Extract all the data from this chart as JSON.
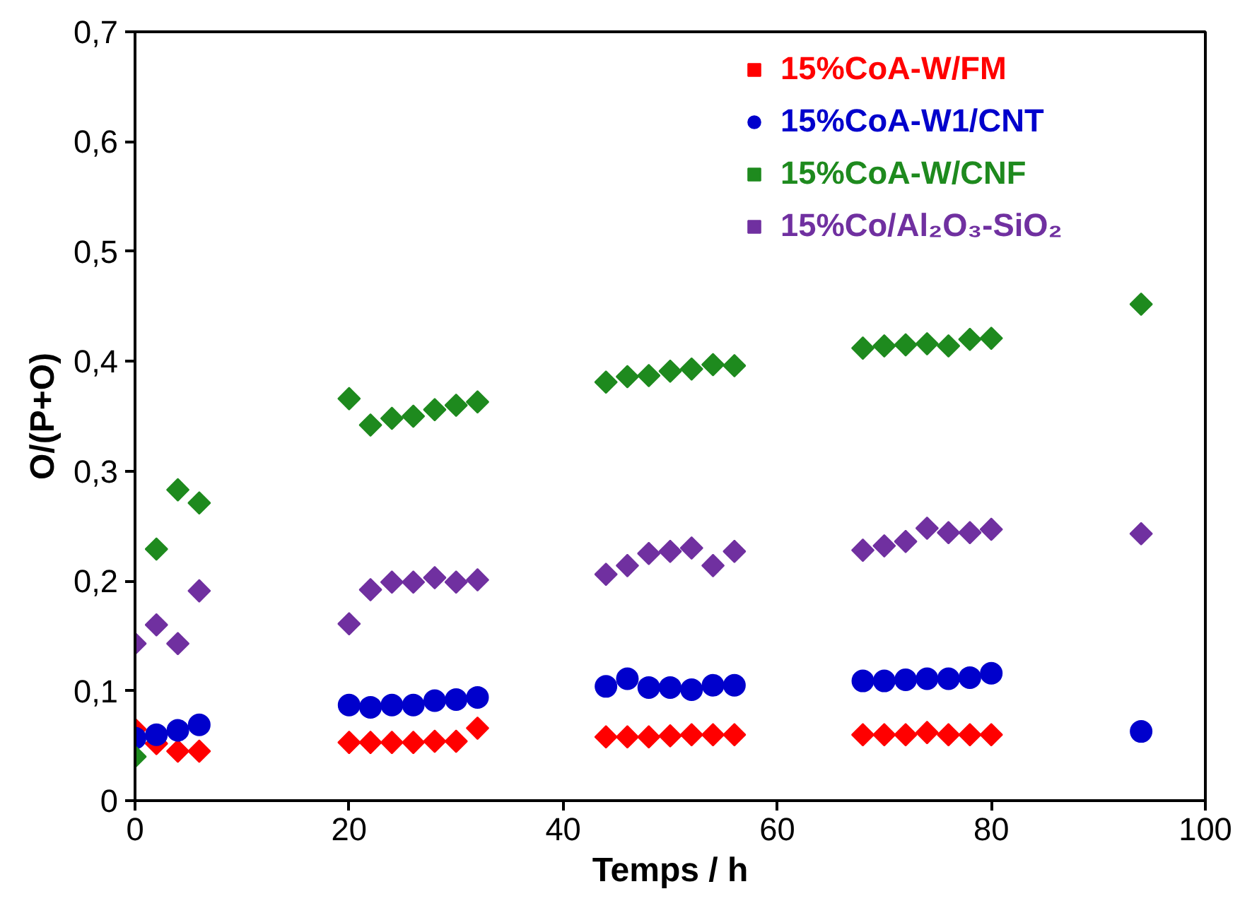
{
  "chart_data": {
    "type": "scatter",
    "xlabel": "Temps / h",
    "ylabel": "O/(P+O)",
    "xlim": [
      0,
      100
    ],
    "xticks": [
      0,
      20,
      40,
      60,
      80,
      100
    ],
    "ylim": [
      0,
      0.7
    ],
    "yticks": [
      {
        "value": 0,
        "label": "0"
      },
      {
        "value": 0.1,
        "label": "0,1"
      },
      {
        "value": 0.2,
        "label": "0,2"
      },
      {
        "value": 0.3,
        "label": "0,3"
      },
      {
        "value": 0.4,
        "label": "0,4"
      },
      {
        "value": 0.5,
        "label": "0,5"
      },
      {
        "value": 0.6,
        "label": "0,6"
      },
      {
        "value": 0.7,
        "label": "0,7"
      }
    ],
    "grid": false,
    "legend": "top right",
    "series": [
      {
        "name": "15%CoA-W/FM",
        "color": "#ff0000",
        "marker": "diamond",
        "x": [
          0,
          2,
          4,
          6,
          20,
          22,
          24,
          26,
          28,
          30,
          32,
          44,
          46,
          48,
          50,
          52,
          54,
          56,
          68,
          70,
          72,
          74,
          76,
          78,
          80
        ],
        "values": [
          0.065,
          0.052,
          0.045,
          0.045,
          0.053,
          0.053,
          0.053,
          0.053,
          0.054,
          0.054,
          0.066,
          0.058,
          0.058,
          0.058,
          0.059,
          0.06,
          0.06,
          0.06,
          0.06,
          0.06,
          0.06,
          0.062,
          0.06,
          0.06,
          0.06
        ]
      },
      {
        "name": "15%CoA-W1/CNT",
        "color": "#0000cc",
        "marker": "circle",
        "x": [
          0,
          2,
          4,
          6,
          20,
          22,
          24,
          26,
          28,
          30,
          32,
          44,
          46,
          48,
          50,
          52,
          54,
          56,
          68,
          70,
          72,
          74,
          76,
          78,
          80,
          94
        ],
        "values": [
          0.057,
          0.06,
          0.064,
          0.069,
          0.087,
          0.085,
          0.087,
          0.087,
          0.091,
          0.092,
          0.094,
          0.104,
          0.111,
          0.103,
          0.103,
          0.101,
          0.105,
          0.105,
          0.109,
          0.109,
          0.11,
          0.111,
          0.111,
          0.112,
          0.116,
          0.063
        ]
      },
      {
        "name": "15%CoA-W/CNF",
        "color": "#1e8a1e",
        "marker": "diamond",
        "x": [
          0,
          2,
          4,
          6,
          20,
          22,
          24,
          26,
          28,
          30,
          32,
          44,
          46,
          48,
          50,
          52,
          54,
          56,
          68,
          70,
          72,
          74,
          76,
          78,
          80,
          94
        ],
        "values": [
          0.04,
          0.229,
          0.283,
          0.271,
          0.366,
          0.342,
          0.348,
          0.35,
          0.356,
          0.36,
          0.363,
          0.381,
          0.386,
          0.387,
          0.391,
          0.393,
          0.397,
          0.396,
          0.412,
          0.414,
          0.415,
          0.416,
          0.414,
          0.42,
          0.421,
          0.452
        ]
      },
      {
        "name": "15%Co/Al₂O₃-SiO₂",
        "color": "#7030a0",
        "marker": "diamond",
        "x": [
          0,
          2,
          4,
          6,
          20,
          22,
          24,
          26,
          28,
          30,
          32,
          44,
          46,
          48,
          50,
          52,
          54,
          56,
          68,
          70,
          72,
          74,
          76,
          78,
          80,
          94
        ],
        "values": [
          0.143,
          0.16,
          0.143,
          0.191,
          0.161,
          0.192,
          0.199,
          0.199,
          0.203,
          0.199,
          0.201,
          0.206,
          0.214,
          0.225,
          0.227,
          0.23,
          0.214,
          0.227,
          0.228,
          0.232,
          0.236,
          0.248,
          0.244,
          0.244,
          0.247,
          0.243
        ]
      }
    ]
  }
}
